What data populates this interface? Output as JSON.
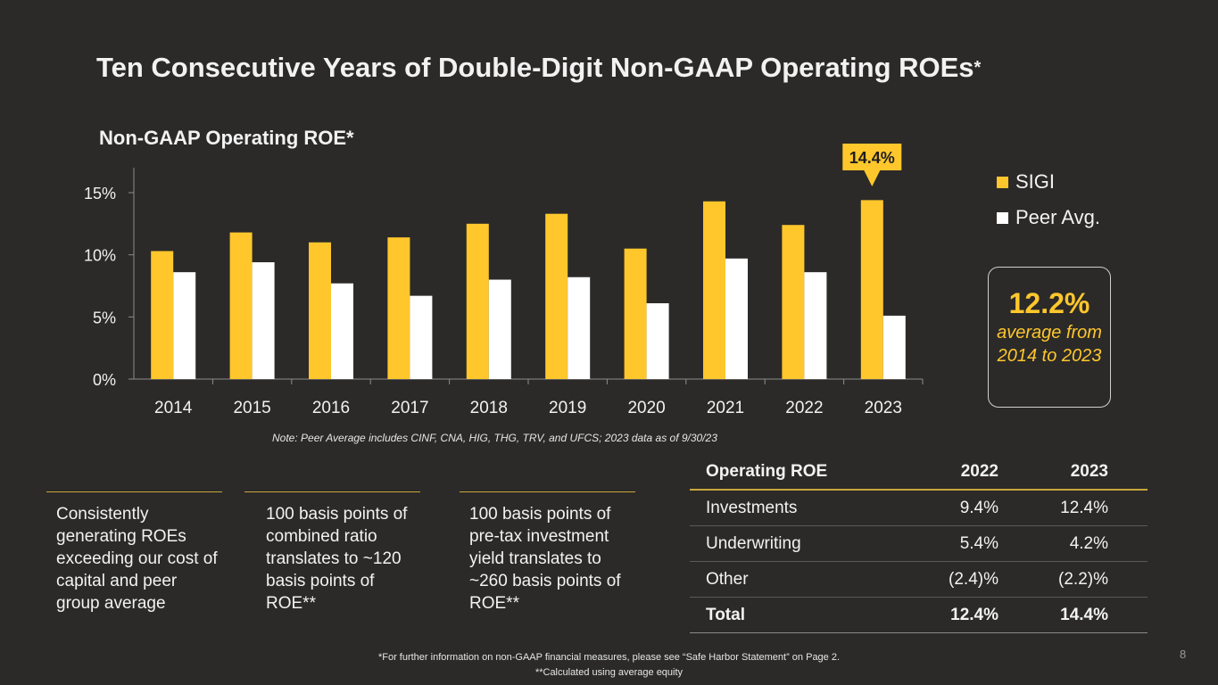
{
  "title": "Ten Consecutive Years of Double-Digit Non-GAAP Operating ROEs",
  "title_mark": "*",
  "chart_data": {
    "type": "bar",
    "title": "Non-GAAP Operating ROE*",
    "categories": [
      "2014",
      "2015",
      "2016",
      "2017",
      "2018",
      "2019",
      "2020",
      "2021",
      "2022",
      "2023"
    ],
    "series": [
      {
        "name": "SIGI",
        "color": "#ffc72c",
        "values": [
          10.3,
          11.8,
          11.0,
          11.4,
          12.5,
          13.3,
          10.5,
          14.3,
          12.4,
          14.4
        ]
      },
      {
        "name": "Peer Avg.",
        "color": "#ffffff",
        "values": [
          8.6,
          9.4,
          7.7,
          6.7,
          8.0,
          8.2,
          6.1,
          9.7,
          8.6,
          5.1
        ]
      }
    ],
    "y_ticks": [
      "0%",
      "5%",
      "10%",
      "15%"
    ],
    "ylim": [
      0,
      17
    ],
    "xlabel": "",
    "ylabel": "",
    "annotation": {
      "label": "14.4%",
      "category": "2023"
    },
    "legend_position": "top-right"
  },
  "callout": {
    "value": "12.2%",
    "text": "average from 2014 to 2023"
  },
  "note": "Note: Peer Average includes CINF, CNA, HIG, THG, TRV, and UFCS; 2023 data as of 9/30/23",
  "bullets": [
    "Consistently generating ROEs exceeding our cost of capital and peer group average",
    "100 basis points of combined ratio translates to ~120 basis points of ROE**",
    "100 basis points of pre-tax investment yield translates to ~260 basis points of ROE**"
  ],
  "table": {
    "headers": [
      "Operating ROE",
      "2022",
      "2023"
    ],
    "rows": [
      [
        "Investments",
        "9.4%",
        "12.4%"
      ],
      [
        "Underwriting",
        "5.4%",
        "4.2%"
      ],
      [
        "Other",
        "(2.4)%",
        "(2.2)%"
      ],
      [
        "Total",
        "12.4%",
        "14.4%"
      ]
    ]
  },
  "footnotes": [
    "*For further information on non-GAAP financial measures, please see “Safe Harbor Statement” on Page 2.",
    "**Calculated using average equity"
  ],
  "page_number": "8"
}
